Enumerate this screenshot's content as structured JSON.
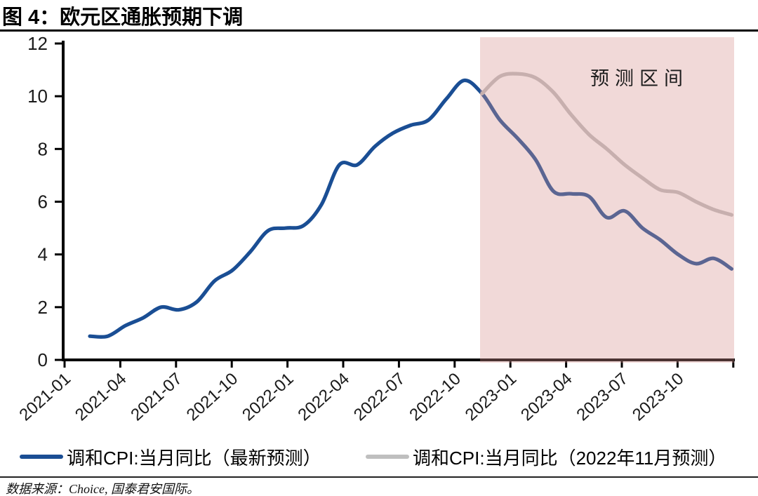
{
  "title": "图 4：欧元区通胀预期下调",
  "footer": "数据来源：Choice, 国泰君安国际。",
  "colors": {
    "actual_line": "#1A4E94",
    "nov2022_forecast_line": "#BFBFBF",
    "forecast_band_fill": "rgba(214,146,142,0.35)",
    "forecast_band_solid_equivalent": "#F3DCDA",
    "axis": "#000000",
    "text": "#1a1a1a"
  },
  "legend": [
    {
      "label": "调和CPI:当月同比（最新预测）",
      "color": "#1A4E94"
    },
    {
      "label": "调和CPI:当月同比（2022年11月预测）",
      "color": "#BFBFBF"
    }
  ],
  "chart_data": {
    "type": "line",
    "title": "欧元区通胀预期下调",
    "xlabel": "",
    "ylabel": "",
    "ylim": [
      0,
      12
    ],
    "y_ticks": [
      0,
      2,
      4,
      6,
      8,
      10,
      12
    ],
    "grid": false,
    "legend_position": "bottom",
    "x": [
      "2021-01",
      "2021-02",
      "2021-03",
      "2021-04",
      "2021-05",
      "2021-06",
      "2021-07",
      "2021-08",
      "2021-09",
      "2021-10",
      "2021-11",
      "2021-12",
      "2022-01",
      "2022-02",
      "2022-03",
      "2022-04",
      "2022-05",
      "2022-06",
      "2022-07",
      "2022-08",
      "2022-09",
      "2022-10",
      "2022-11",
      "2022-12",
      "2023-01",
      "2023-02",
      "2023-03",
      "2023-04",
      "2023-05",
      "2023-06",
      "2023-07",
      "2023-08",
      "2023-09",
      "2023-10",
      "2023-11",
      "2023-12",
      "2024-01"
    ],
    "x_tick_labels": [
      "2021-01",
      "2021-04",
      "2021-07",
      "2021-10",
      "2022-01",
      "2022-04",
      "2022-07",
      "2022-10",
      "2023-01",
      "2023-04",
      "2023-07",
      "2023-10"
    ],
    "series": [
      {
        "name": "调和CPI:当月同比（最新预测）",
        "color": "#1A4E94",
        "start_index": 0,
        "values": [
          0.9,
          0.9,
          1.3,
          1.6,
          2.0,
          1.9,
          2.2,
          3.0,
          3.4,
          4.1,
          4.9,
          5.0,
          5.1,
          5.9,
          7.4,
          7.4,
          8.1,
          8.6,
          8.9,
          9.1,
          9.9,
          10.6,
          10.1,
          9.1,
          8.4,
          7.6,
          6.4,
          6.3,
          6.2,
          5.4,
          5.65,
          5.0,
          4.55,
          4.0,
          3.65,
          3.85,
          3.45
        ]
      },
      {
        "name": "调和CPI:当月同比（2022年11月预测）",
        "color": "#BFBFBF",
        "start_index": 22,
        "values": [
          10.1,
          10.75,
          10.85,
          10.7,
          10.15,
          9.3,
          8.55,
          8.0,
          7.4,
          6.9,
          6.45,
          6.35,
          6.0,
          5.7,
          5.5
        ]
      }
    ],
    "forecast_band": {
      "label": "预测区间",
      "start_x": "2022-11",
      "end_x": "2024-01",
      "fill": "rgba(214,146,142,0.35)"
    }
  }
}
